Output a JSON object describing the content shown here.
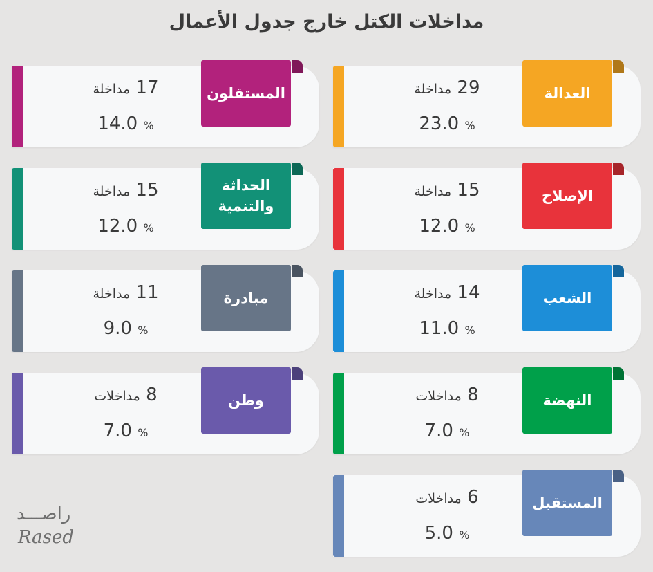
{
  "title": "مداخلات الكتل خارج جدول الأعمال",
  "logo": {
    "arabic": "راصـــد",
    "latin": "Rased"
  },
  "percent_sign": "%",
  "chart_data": {
    "type": "table",
    "title": "مداخلات الكتل خارج جدول الأعمال",
    "items": [
      {
        "name": "العدالة",
        "count": 29,
        "unit": "مداخلة",
        "percent": "23.0",
        "color": "#f5a623"
      },
      {
        "name": "المستقلون",
        "count": 17,
        "unit": "مداخلة",
        "percent": "14.0",
        "color": "#b2227c"
      },
      {
        "name": "الإصلاح",
        "count": 15,
        "unit": "مداخلة",
        "percent": "12.0",
        "color": "#e8333b"
      },
      {
        "name": "الحداثة\nوالتنمية",
        "count": 15,
        "unit": "مداخلة",
        "percent": "12.0",
        "color": "#129177"
      },
      {
        "name": "الشعب",
        "count": 14,
        "unit": "مداخلة",
        "percent": "11.0",
        "color": "#1d8ed8"
      },
      {
        "name": "مبادرة",
        "count": 11,
        "unit": "مداخلة",
        "percent": "9.0",
        "color": "#677587"
      },
      {
        "name": "النهضة",
        "count": 8,
        "unit": "مداخلات",
        "percent": "7.0",
        "color": "#00a04a"
      },
      {
        "name": "وطن",
        "count": 8,
        "unit": "مداخلات",
        "percent": "7.0",
        "color": "#6a5aab"
      },
      {
        "name": "المستقبل",
        "count": 6,
        "unit": "مداخلات",
        "percent": "5.0",
        "color": "#6787b9"
      }
    ]
  }
}
